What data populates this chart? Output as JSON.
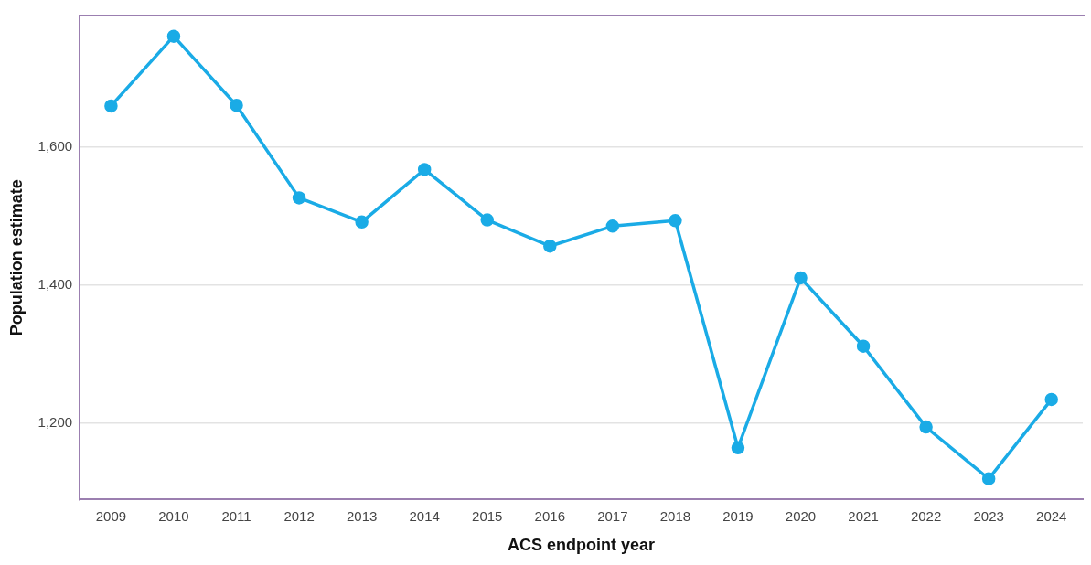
{
  "chart_data": {
    "type": "line",
    "xlabel": "ACS endpoint year",
    "ylabel": "Population estimate",
    "categories": [
      "2009",
      "2010",
      "2011",
      "2012",
      "2013",
      "2014",
      "2015",
      "2016",
      "2017",
      "2018",
      "2019",
      "2020",
      "2021",
      "2022",
      "2023",
      "2024"
    ],
    "series": [
      {
        "color": "#1aabe6",
        "values": [
          1659,
          1760,
          1660,
          1526,
          1491,
          1567,
          1494,
          1456,
          1485,
          1493,
          1164,
          1410,
          1311,
          1194,
          1119,
          1234
        ]
      }
    ],
    "ylim": [
      1089,
      1790
    ],
    "yticks": [
      {
        "value": 1200,
        "label": "1,200"
      },
      {
        "value": 1400,
        "label": "1,400"
      },
      {
        "value": 1600,
        "label": "1,600"
      }
    ],
    "grid": "y",
    "marker": "circle",
    "line_style": "solid",
    "legend": false
  }
}
